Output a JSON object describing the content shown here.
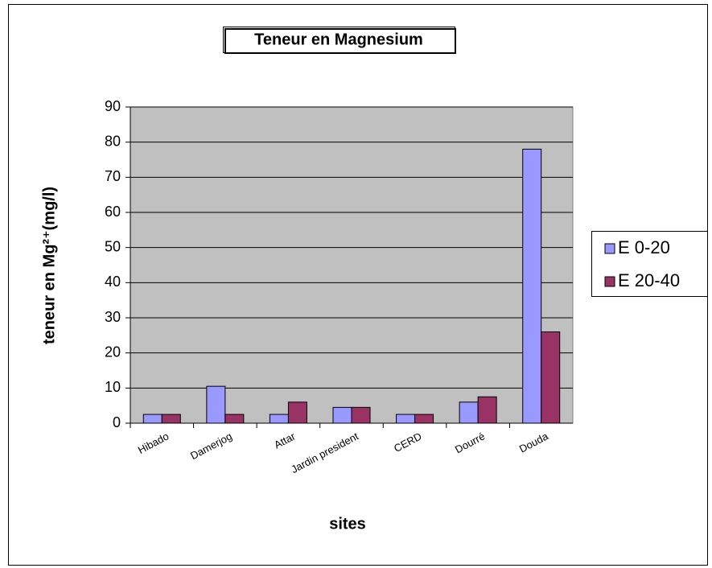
{
  "chart_data": {
    "type": "bar",
    "title": "Teneur en Magnesium",
    "x_label": "sites",
    "y_label": "teneur en Mg²⁺(mg/l)",
    "categories": [
      "Hibado",
      "Damerjog",
      "Attar",
      "Jardin president",
      "CERD",
      "Dourré",
      "Douda"
    ],
    "series": [
      {
        "name": "E 0-20",
        "color": "#9999ff",
        "values": [
          2.5,
          10.5,
          2.5,
          4.5,
          2.5,
          6,
          78
        ]
      },
      {
        "name": "E 20-40",
        "color": "#993366",
        "values": [
          2.5,
          2.5,
          6,
          4.5,
          2.5,
          7.5,
          26
        ]
      }
    ],
    "ylim": [
      0,
      90
    ],
    "yticks": [
      0,
      10,
      20,
      30,
      40,
      50,
      60,
      70,
      80,
      90
    ],
    "grid": true,
    "legend": "right",
    "plot_background": "#c0c0c0"
  }
}
